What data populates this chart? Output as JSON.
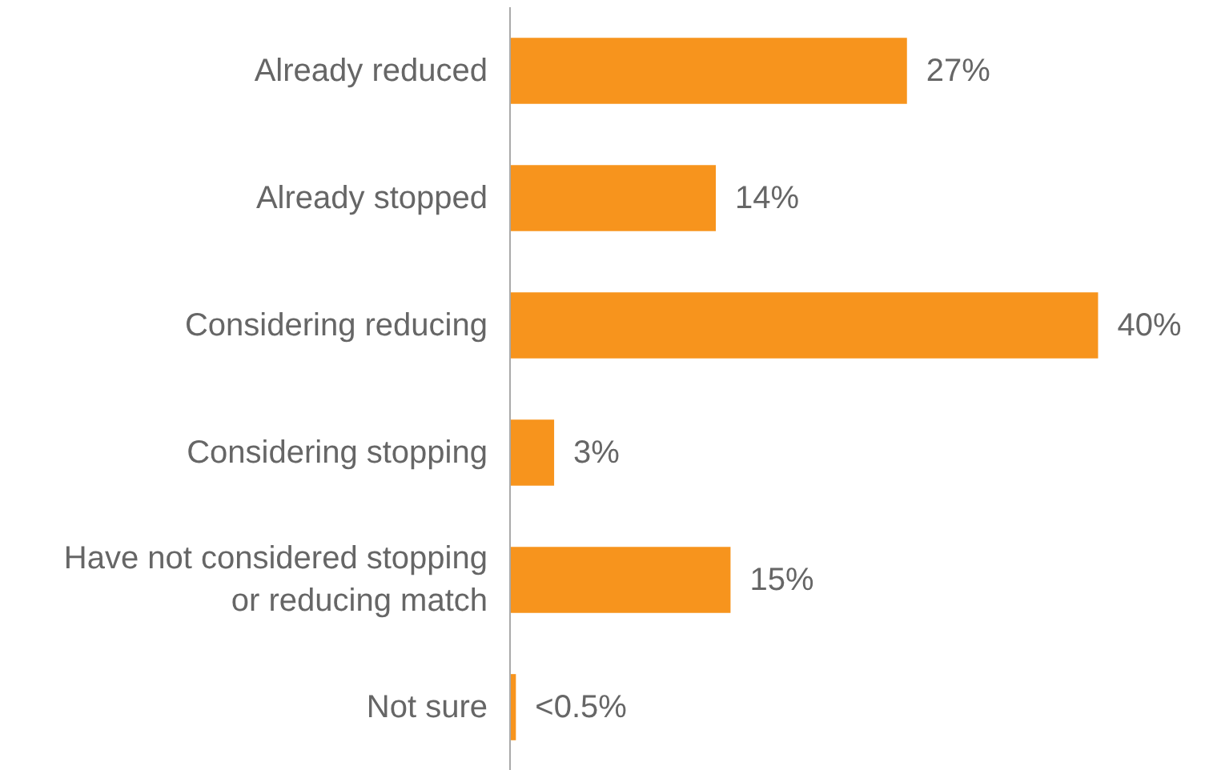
{
  "chart_data": {
    "type": "bar",
    "orientation": "horizontal",
    "categories": [
      "Already reduced",
      "Already stopped",
      "Considering reducing",
      "Considering stopping",
      "Have not considered stopping or reducing match",
      "Not sure"
    ],
    "values": [
      27,
      14,
      40,
      3,
      15,
      0.4
    ],
    "value_labels": [
      "27%",
      "14%",
      "40%",
      "3%",
      "15%",
      "<0.5%"
    ],
    "color": "#f7941d"
  }
}
